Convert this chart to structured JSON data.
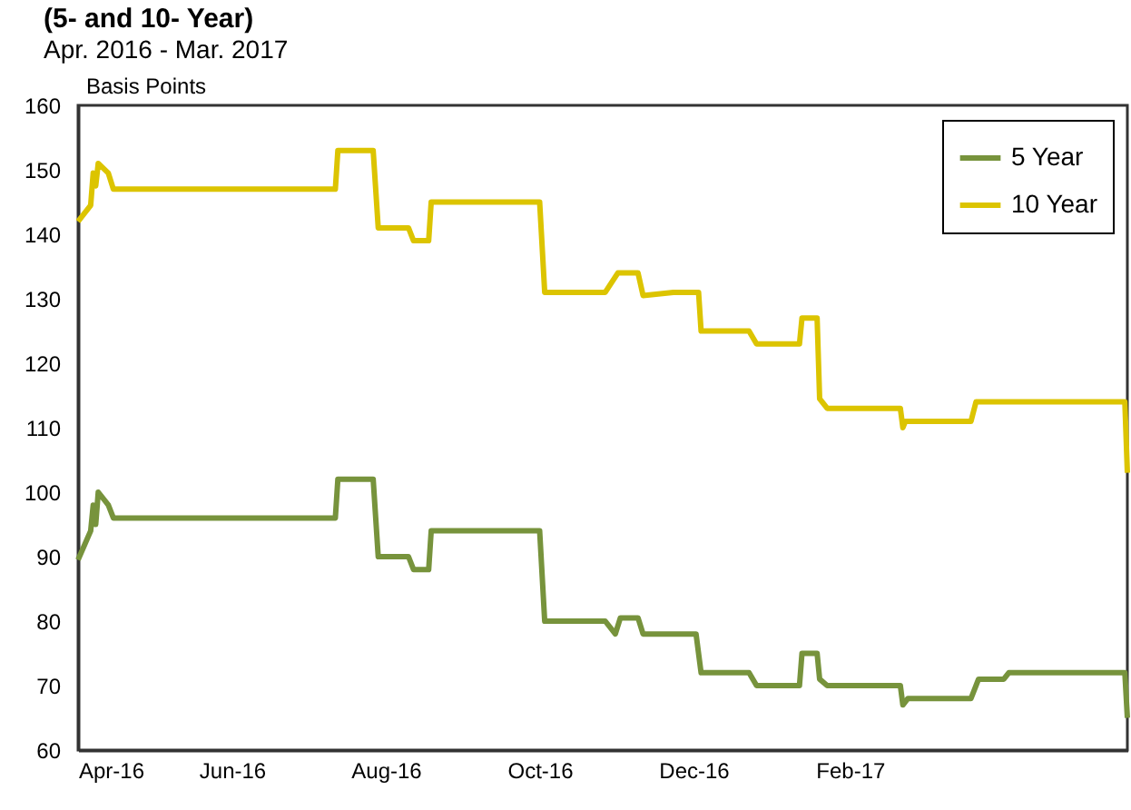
{
  "chart_data": {
    "type": "line",
    "title": "(5- and 10- Year)",
    "subtitle": "Apr. 2016 - Mar. 2017",
    "ylabel": "Basis Points",
    "xlim": [
      "2016-04-01",
      "2017-05-22"
    ],
    "ylim": [
      60,
      160
    ],
    "yticks": [
      60,
      70,
      80,
      90,
      100,
      110,
      120,
      130,
      140,
      150,
      160
    ],
    "xticks": [
      {
        "value": "2016-04-01",
        "label": "Apr-16"
      },
      {
        "value": "2016-06-01",
        "label": "Jun-16"
      },
      {
        "value": "2016-08-01",
        "label": "Aug-16"
      },
      {
        "value": "2016-10-01",
        "label": "Oct-16"
      },
      {
        "value": "2016-12-01",
        "label": "Dec-16"
      },
      {
        "value": "2017-02-01",
        "label": "Feb-17"
      }
    ],
    "grid": false,
    "legend": "top right",
    "line_style": "solid",
    "series": [
      {
        "name": "5 Year",
        "color": "#77933c",
        "x": [
          "2016-04-01",
          "2016-04-06",
          "2016-04-07",
          "2016-04-08",
          "2016-04-09",
          "2016-04-13",
          "2016-04-15",
          "2016-07-12",
          "2016-07-13",
          "2016-07-27",
          "2016-07-29",
          "2016-08-10",
          "2016-08-12",
          "2016-08-18",
          "2016-08-19",
          "2016-10-01",
          "2016-10-03",
          "2016-10-27",
          "2016-10-31",
          "2016-11-02",
          "2016-11-09",
          "2016-11-11",
          "2016-12-02",
          "2016-12-04",
          "2016-12-23",
          "2016-12-26",
          "2017-01-12",
          "2017-01-13",
          "2017-01-19",
          "2017-01-20",
          "2017-01-23",
          "2017-02-21",
          "2017-02-22",
          "2017-02-24",
          "2017-03-21",
          "2017-03-24",
          "2017-04-03",
          "2017-04-05",
          "2017-05-21",
          "2017-05-22"
        ],
        "values": [
          89.5,
          94,
          98,
          95,
          100,
          98,
          96,
          96,
          102,
          102,
          90,
          90,
          88,
          88,
          94,
          94,
          80,
          80,
          78,
          80.5,
          80.5,
          78,
          78,
          72,
          72,
          70,
          70,
          75,
          75,
          71,
          70,
          70,
          67,
          68,
          68,
          71,
          71,
          72,
          72,
          65
        ]
      },
      {
        "name": "10 Year",
        "color": "#dcc400",
        "x": [
          "2016-04-01",
          "2016-04-06",
          "2016-04-07",
          "2016-04-08",
          "2016-04-09",
          "2016-04-13",
          "2016-04-15",
          "2016-07-12",
          "2016-07-13",
          "2016-07-27",
          "2016-07-29",
          "2016-08-10",
          "2016-08-12",
          "2016-08-18",
          "2016-08-19",
          "2016-10-01",
          "2016-10-03",
          "2016-10-27",
          "2016-11-01",
          "2016-11-09",
          "2016-11-11",
          "2016-11-23",
          "2016-12-03",
          "2016-12-04",
          "2016-12-23",
          "2016-12-26",
          "2017-01-12",
          "2017-01-13",
          "2017-01-19",
          "2017-01-20",
          "2017-01-23",
          "2017-02-21",
          "2017-02-22",
          "2017-02-23",
          "2017-03-21",
          "2017-03-23",
          "2017-05-21",
          "2017-05-22"
        ],
        "values": [
          142,
          144.5,
          149.5,
          147.5,
          151,
          149.5,
          147,
          147,
          153,
          153,
          141,
          141,
          139,
          139,
          145,
          145,
          131,
          131,
          134,
          134,
          130.5,
          131,
          131,
          125,
          125,
          123,
          123,
          127,
          127,
          114.5,
          113,
          113,
          110,
          111,
          111,
          114,
          114,
          103
        ]
      }
    ]
  }
}
